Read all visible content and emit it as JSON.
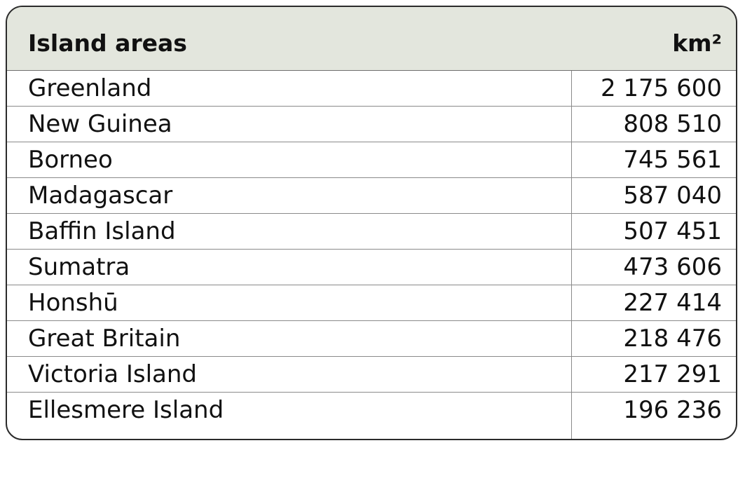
{
  "chart_data": {
    "type": "table",
    "columns": [
      "Island areas",
      "km²"
    ],
    "rows": [
      {
        "name": "Greenland",
        "value": "2 175 600"
      },
      {
        "name": "New Guinea",
        "value": "808 510"
      },
      {
        "name": "Borneo",
        "value": "745 561"
      },
      {
        "name": "Madagascar",
        "value": "587 040"
      },
      {
        "name": "Baffin Island",
        "value": "507 451"
      },
      {
        "name": "Sumatra",
        "value": "473 606"
      },
      {
        "name": "Honshū",
        "value": "227 414"
      },
      {
        "name": "Great Britain",
        "value": "218 476"
      },
      {
        "name": "Victoria Island",
        "value": "217 291"
      },
      {
        "name": "Ellesmere Island",
        "value": "196 236"
      }
    ]
  },
  "colors": {
    "header_bg": "#e3e6dd",
    "border": "#2b2b2b",
    "grid": "#8a8a8a",
    "text": "#111111"
  }
}
